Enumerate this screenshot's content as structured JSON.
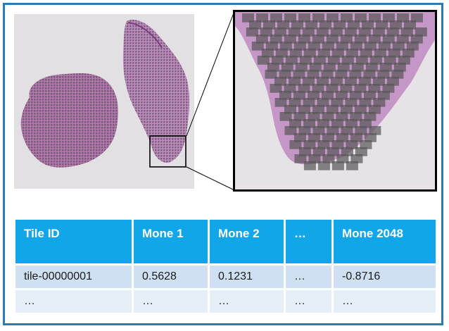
{
  "table": {
    "headers": [
      "Tile ID",
      "Mone 1",
      "Mone 2",
      "…",
      "Mone 2048"
    ],
    "rows": [
      [
        "tile-00000001",
        "0.5628",
        "0.1231",
        "…",
        "-0.8716"
      ],
      [
        "…",
        "…",
        "…",
        "…",
        "…"
      ]
    ]
  },
  "colors": {
    "frame_border": "#2a7ab3",
    "header_bg": "#11a6e8",
    "row_odd_bg": "#cfe0f3",
    "row_even_bg": "#e6eef8",
    "tissue": "#b57bb0",
    "tile_overlay": "#555555"
  }
}
